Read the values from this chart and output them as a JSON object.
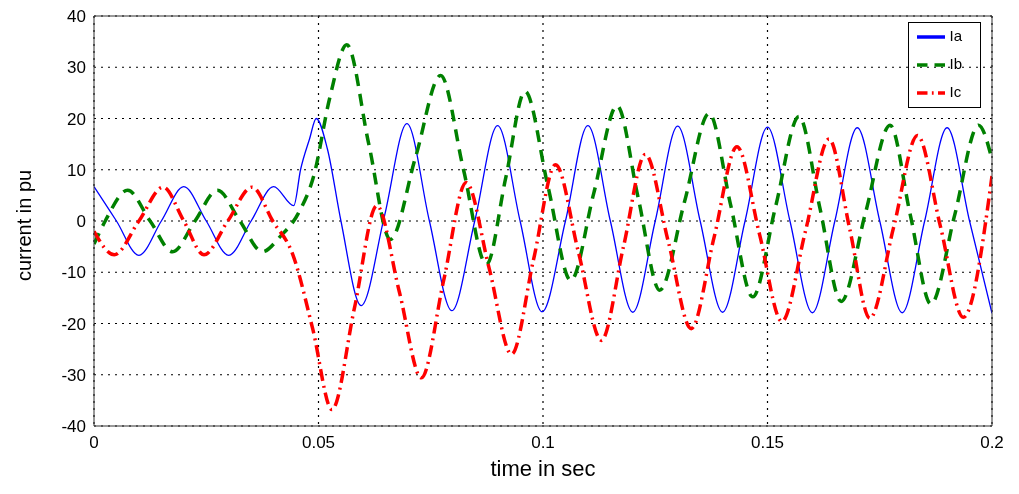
{
  "chart_data": {
    "type": "line",
    "xlabel": "time in sec",
    "ylabel": "current in pu",
    "xlim": [
      0,
      0.2
    ],
    "xticks": [
      0,
      0.05,
      0.1,
      0.15,
      0.2
    ],
    "ylim": [
      -40,
      40
    ],
    "yticks": [
      -40,
      -30,
      -20,
      -10,
      0,
      10,
      20,
      30,
      40
    ],
    "grid": true,
    "legend": "top right",
    "marker": "none",
    "series": [
      {
        "name": "Ia",
        "color": "#0000ff",
        "line_style": "solid",
        "x": [
          0,
          0.005,
          0.01,
          0.015,
          0.02,
          0.025,
          0.03,
          0.035,
          0.04,
          0.0445,
          0.046,
          0.048,
          0.0495,
          0.052,
          0.055,
          0.0595,
          0.0647,
          0.0697,
          0.0747,
          0.0797,
          0.0848,
          0.0899,
          0.0949,
          0.0998,
          0.105,
          0.11,
          0.115,
          0.12,
          0.125,
          0.13,
          0.135,
          0.14,
          0.145,
          0.15,
          0.155,
          0.16,
          0.165,
          0.17,
          0.175,
          0.18,
          0.185,
          0.19,
          0.195,
          0.2
        ],
        "values": [
          6.7,
          0,
          -6.7,
          0,
          6.7,
          0,
          -6.7,
          0,
          6.7,
          3,
          10,
          16,
          20,
          14,
          0,
          -16.5,
          1,
          19,
          0,
          -17.5,
          0,
          18.6,
          0,
          -17.7,
          0,
          18.6,
          0,
          -17.8,
          0,
          18.5,
          0,
          -17.8,
          0,
          18.3,
          0,
          -17.9,
          0,
          18.2,
          0,
          -17.9,
          0,
          18.2,
          0,
          -18
        ]
      },
      {
        "name": "Ib",
        "color": "#008000",
        "line_style": "dashed",
        "x": [
          0,
          0.0025,
          0.0075,
          0.0125,
          0.0175,
          0.0225,
          0.0275,
          0.0325,
          0.0375,
          0.0415,
          0.0455,
          0.049,
          0.0525,
          0.0563,
          0.0612,
          0.066,
          0.0716,
          0.0772,
          0.0823,
          0.0874,
          0.0917,
          0.096,
          0.1011,
          0.1062,
          0.1113,
          0.1165,
          0.1212,
          0.126,
          0.1315,
          0.137,
          0.1418,
          0.1467,
          0.1518,
          0.157,
          0.1617,
          0.1664,
          0.1718,
          0.1773,
          0.1818,
          0.1864,
          0.1917,
          0.197,
          0.2
        ],
        "values": [
          -4.5,
          0,
          6,
          0,
          -6,
          0,
          6,
          0,
          -6,
          -3,
          1.5,
          9,
          24,
          34.4,
          15,
          -3.6,
          12.4,
          28.4,
          10,
          -8.5,
          8.4,
          25.3,
          6.8,
          -11.6,
          5.4,
          22.5,
          4.5,
          -13.5,
          3.7,
          21,
          3.1,
          -14.8,
          2.8,
          20.4,
          2.4,
          -15.7,
          1.5,
          18.7,
          1.2,
          -16.2,
          1.2,
          18.7,
          12
        ]
      },
      {
        "name": "Ic",
        "color": "#ff0000",
        "line_style": "dashdot",
        "x": [
          0,
          0.0045,
          0.01,
          0.0154,
          0.02,
          0.0245,
          0.0298,
          0.0352,
          0.0398,
          0.0443,
          0.0487,
          0.053,
          0.058,
          0.063,
          0.068,
          0.0729,
          0.0779,
          0.0829,
          0.088,
          0.093,
          0.0979,
          0.1028,
          0.1079,
          0.113,
          0.1179,
          0.1228,
          0.1279,
          0.133,
          0.1381,
          0.1432,
          0.1482,
          0.1532,
          0.1585,
          0.1637,
          0.1683,
          0.1728,
          0.1781,
          0.1834,
          0.1885,
          0.1936,
          0.2
        ],
        "values": [
          -2,
          -6.6,
          0,
          6.6,
          0,
          -6.6,
          0,
          6.6,
          0,
          -6.6,
          -21,
          -36.8,
          -17,
          3,
          -13.8,
          -30.6,
          -11.5,
          7.5,
          -9.2,
          -26,
          -7.5,
          11,
          -6.1,
          -23.3,
          -5.1,
          13,
          -4,
          -21,
          -3.2,
          14.5,
          -2.5,
          -19.6,
          -1.8,
          16,
          -1.5,
          -19,
          -1.2,
          16.7,
          -1,
          -18.8,
          8.8
        ]
      }
    ]
  }
}
